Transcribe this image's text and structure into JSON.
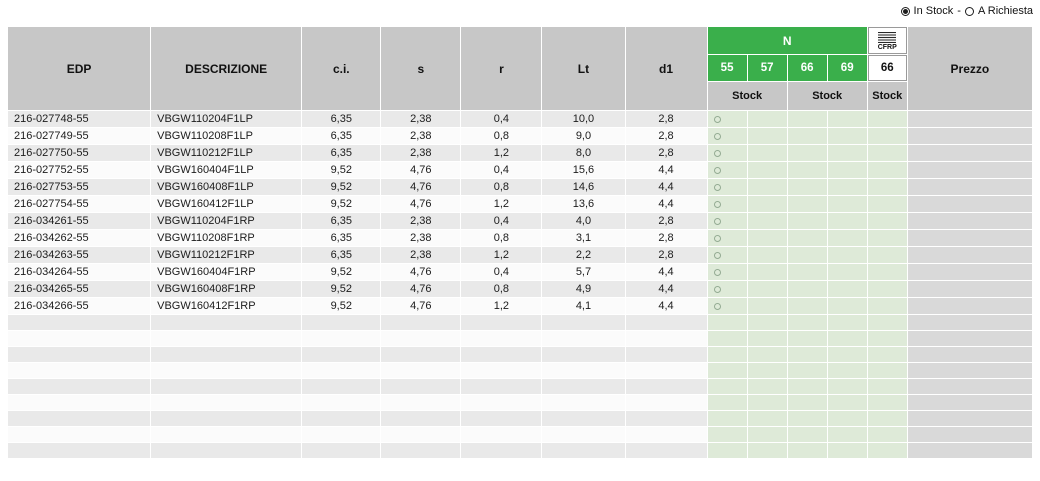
{
  "legend": {
    "in_stock_label": "In Stock",
    "separator": "-",
    "on_request_label": "A Richiesta"
  },
  "table": {
    "headers": {
      "edp": "EDP",
      "descrizione": "DESCRIZIONE",
      "ci": "c.i.",
      "s": "s",
      "r": "r",
      "lt": "Lt",
      "d1": "d1",
      "n_group": "N",
      "cfrp_label": "CFRP",
      "stock": "Stock",
      "prezzo": "Prezzo"
    },
    "n_grades": [
      "55",
      "57",
      "66",
      "69"
    ],
    "cfrp_grade": "66",
    "rows": [
      {
        "edp": "216-027748-55",
        "descrizione": "VBGW110204F1LP",
        "ci": "6,35",
        "s": "2,38",
        "r": "0,4",
        "lt": "10,0",
        "d1": "2,8",
        "stock": {
          "n55": "on_request"
        }
      },
      {
        "edp": "216-027749-55",
        "descrizione": "VBGW110208F1LP",
        "ci": "6,35",
        "s": "2,38",
        "r": "0,8",
        "lt": "9,0",
        "d1": "2,8",
        "stock": {
          "n55": "on_request"
        }
      },
      {
        "edp": "216-027750-55",
        "descrizione": "VBGW110212F1LP",
        "ci": "6,35",
        "s": "2,38",
        "r": "1,2",
        "lt": "8,0",
        "d1": "2,8",
        "stock": {
          "n55": "on_request"
        }
      },
      {
        "edp": "216-027752-55",
        "descrizione": "VBGW160404F1LP",
        "ci": "9,52",
        "s": "4,76",
        "r": "0,4",
        "lt": "15,6",
        "d1": "4,4",
        "stock": {
          "n55": "on_request"
        }
      },
      {
        "edp": "216-027753-55",
        "descrizione": "VBGW160408F1LP",
        "ci": "9,52",
        "s": "4,76",
        "r": "0,8",
        "lt": "14,6",
        "d1": "4,4",
        "stock": {
          "n55": "on_request"
        }
      },
      {
        "edp": "216-027754-55",
        "descrizione": "VBGW160412F1LP",
        "ci": "9,52",
        "s": "4,76",
        "r": "1,2",
        "lt": "13,6",
        "d1": "4,4",
        "stock": {
          "n55": "on_request"
        }
      },
      {
        "edp": "216-034261-55",
        "descrizione": "VBGW110204F1RP",
        "ci": "6,35",
        "s": "2,38",
        "r": "0,4",
        "lt": "4,0",
        "d1": "2,8",
        "stock": {
          "n55": "on_request"
        }
      },
      {
        "edp": "216-034262-55",
        "descrizione": "VBGW110208F1RP",
        "ci": "6,35",
        "s": "2,38",
        "r": "0,8",
        "lt": "3,1",
        "d1": "2,8",
        "stock": {
          "n55": "on_request"
        }
      },
      {
        "edp": "216-034263-55",
        "descrizione": "VBGW110212F1RP",
        "ci": "6,35",
        "s": "2,38",
        "r": "1,2",
        "lt": "2,2",
        "d1": "2,8",
        "stock": {
          "n55": "on_request"
        }
      },
      {
        "edp": "216-034264-55",
        "descrizione": "VBGW160404F1RP",
        "ci": "9,52",
        "s": "4,76",
        "r": "0,4",
        "lt": "5,7",
        "d1": "4,4",
        "stock": {
          "n55": "on_request"
        }
      },
      {
        "edp": "216-034265-55",
        "descrizione": "VBGW160408F1RP",
        "ci": "9,52",
        "s": "4,76",
        "r": "0,8",
        "lt": "4,9",
        "d1": "4,4",
        "stock": {
          "n55": "on_request"
        }
      },
      {
        "edp": "216-034266-55",
        "descrizione": "VBGW160412F1RP",
        "ci": "9,52",
        "s": "4,76",
        "r": "1,2",
        "lt": "4,1",
        "d1": "4,4",
        "stock": {
          "n55": "on_request"
        }
      }
    ],
    "empty_rows": 9
  },
  "colors": {
    "header_bg": "#c7c7c7",
    "grade_green": "#3aaf4b",
    "stock_column_bg": "#deead8",
    "row_alt_bg": "#e9e9e9",
    "prezzo_bg": "#d9d9d9"
  }
}
